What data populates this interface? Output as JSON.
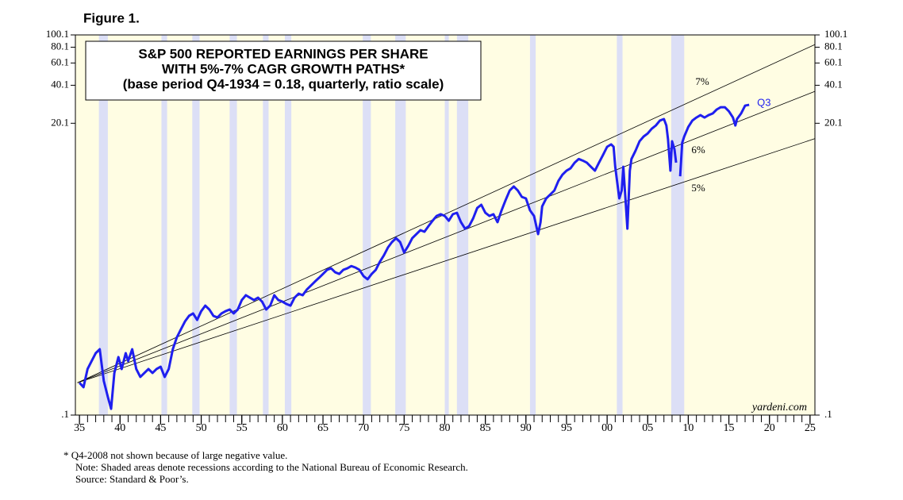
{
  "chart_data": {
    "type": "line",
    "figure_label": "Figure 1.",
    "title_lines": [
      "S&P 500 REPORTED EARNINGS PER SHARE",
      "WITH 5%-7% CAGR GROWTH PATHS*",
      "(base period Q4-1934 = 0.18, quarterly, ratio scale)"
    ],
    "log_scale": true,
    "color": "#1f1fef",
    "background": "#fffde3",
    "recession_color": "#dcdff6",
    "xlim": [
      1934.5,
      2025.6
    ],
    "ylim": [
      0.1,
      100.1
    ],
    "yticks": [
      {
        "value": 0.1,
        "label": ".1"
      },
      20.1,
      40.1,
      60.1,
      80.1,
      100.1
    ],
    "xticks": [
      {
        "value": 1935,
        "label": "35"
      },
      {
        "value": 1940,
        "label": "40"
      },
      {
        "value": 1945,
        "label": "45"
      },
      {
        "value": 1950,
        "label": "50"
      },
      {
        "value": 1955,
        "label": "55"
      },
      {
        "value": 1960,
        "label": "60"
      },
      {
        "value": 1965,
        "label": "65"
      },
      {
        "value": 1970,
        "label": "70"
      },
      {
        "value": 1975,
        "label": "75"
      },
      {
        "value": 1980,
        "label": "80"
      },
      {
        "value": 1985,
        "label": "85"
      },
      {
        "value": 1990,
        "label": "90"
      },
      {
        "value": 1995,
        "label": "95"
      },
      {
        "value": 2000,
        "label": "00"
      },
      {
        "value": 2005,
        "label": "05"
      },
      {
        "value": 2010,
        "label": "10"
      },
      {
        "value": 2015,
        "label": "15"
      },
      {
        "value": 2020,
        "label": "20"
      },
      {
        "value": 2025,
        "label": "25"
      }
    ],
    "xminorticks": [
      1935,
      1936,
      1937,
      1938,
      1939,
      1940,
      1941,
      1942,
      1943,
      1944,
      1945,
      1946,
      1947,
      1948,
      1949,
      1950,
      1951,
      1952,
      1953,
      1954,
      1955,
      1956,
      1957,
      1958,
      1959,
      1960,
      1961,
      1962,
      1963,
      1964,
      1965,
      1966,
      1967,
      1968,
      1969,
      1970,
      1971,
      1972,
      1973,
      1974,
      1975,
      1976,
      1977,
      1978,
      1979,
      1980,
      1981,
      1982,
      1983,
      1984,
      1985,
      1986,
      1987,
      1988,
      1989,
      1990,
      1991,
      1992,
      1993,
      1994,
      1995,
      1996,
      1997,
      1998,
      1999,
      2000,
      2001,
      2002,
      2003,
      2004,
      2005,
      2006,
      2007,
      2008,
      2009,
      2010,
      2011,
      2012,
      2013,
      2014,
      2015,
      2016,
      2017,
      2018,
      2019,
      2020,
      2021,
      2022,
      2023,
      2024,
      2025
    ],
    "recessions": [
      [
        1937.4,
        1938.5
      ],
      [
        1945.1,
        1945.8
      ],
      [
        1948.9,
        1949.8
      ],
      [
        1953.5,
        1954.4
      ],
      [
        1957.6,
        1958.3
      ],
      [
        1960.3,
        1961.1
      ],
      [
        1969.9,
        1970.9
      ],
      [
        1973.9,
        1975.2
      ],
      [
        1980.0,
        1980.5
      ],
      [
        1981.5,
        1982.9
      ],
      [
        1990.5,
        1991.2
      ],
      [
        2001.2,
        2001.9
      ],
      [
        2007.9,
        2009.5
      ]
    ],
    "growth_paths": [
      {
        "name": "7%",
        "x": [
          1934.75,
          2025.6
        ],
        "values": [
          0.18,
          84
        ]
      },
      {
        "name": "6%",
        "x": [
          1934.75,
          2025.6
        ],
        "values": [
          0.18,
          35.9
        ]
      },
      {
        "name": "5%",
        "x": [
          1934.75,
          2025.6
        ],
        "values": [
          0.18,
          15.2
        ]
      }
    ],
    "x": [
      1935,
      1935.5,
      1936,
      1936.5,
      1937,
      1937.5,
      1938,
      1938.5,
      1938.9,
      1939.3,
      1939.8,
      1940.2,
      1940.7,
      1941,
      1941.5,
      1942,
      1942.5,
      1943,
      1943.5,
      1944,
      1944.5,
      1945,
      1945.5,
      1946,
      1946.5,
      1947,
      1947.5,
      1948,
      1948.5,
      1949,
      1949.5,
      1950,
      1950.5,
      1951,
      1951.5,
      1952,
      1952.5,
      1953,
      1953.5,
      1954,
      1954.5,
      1955,
      1955.5,
      1956,
      1956.5,
      1957,
      1957.5,
      1958,
      1958.5,
      1959,
      1959.5,
      1960,
      1960.5,
      1961,
      1961.5,
      1962,
      1962.5,
      1963,
      1963.5,
      1964,
      1964.5,
      1965,
      1965.5,
      1966,
      1966.5,
      1967,
      1967.5,
      1968,
      1968.5,
      1969,
      1969.5,
      1970,
      1970.5,
      1971,
      1971.5,
      1972,
      1972.5,
      1973,
      1973.5,
      1974,
      1974.5,
      1975,
      1975.5,
      1976,
      1976.5,
      1977,
      1977.5,
      1978,
      1978.5,
      1979,
      1979.5,
      1980,
      1980.5,
      1981,
      1981.5,
      1982,
      1982.5,
      1983,
      1983.5,
      1984,
      1984.5,
      1985,
      1985.5,
      1986,
      1986.5,
      1987,
      1987.5,
      1988,
      1988.5,
      1989,
      1989.5,
      1990,
      1990.5,
      1991,
      1991.5,
      1991.8,
      1992,
      1992.5,
      1993,
      1993.5,
      1994,
      1994.5,
      1995,
      1995.5,
      1996,
      1996.5,
      1997,
      1997.5,
      1998,
      1998.5,
      1999,
      1999.5,
      2000,
      2000.5,
      2000.8,
      2001,
      2001.5,
      2001.8,
      2002,
      2002.5,
      2002.8,
      2003,
      2003.5,
      2004,
      2004.5,
      2005,
      2005.5,
      2006,
      2006.5,
      2007,
      2007.3,
      2007.5,
      2007.8,
      2008,
      2008.3,
      2008.5,
      2008.75,
      2009,
      2009.25,
      2009.5,
      2010,
      2010.5,
      2011,
      2011.5,
      2012,
      2012.5,
      2013,
      2013.5,
      2014,
      2014.5,
      2015,
      2015.5,
      2015.8,
      2016,
      2016.5,
      2017,
      2017.5
    ],
    "values": [
      0.18,
      0.166,
      0.231,
      0.267,
      0.308,
      0.331,
      0.186,
      0.139,
      0.112,
      0.215,
      0.287,
      0.231,
      0.308,
      0.267,
      0.331,
      0.231,
      0.2,
      0.215,
      0.231,
      0.215,
      0.231,
      0.241,
      0.2,
      0.231,
      0.331,
      0.411,
      0.475,
      0.548,
      0.607,
      0.634,
      0.564,
      0.661,
      0.731,
      0.681,
      0.607,
      0.589,
      0.634,
      0.661,
      0.681,
      0.634,
      0.681,
      0.809,
      0.883,
      0.845,
      0.809,
      0.845,
      0.786,
      0.681,
      0.731,
      0.883,
      0.809,
      0.786,
      0.753,
      0.731,
      0.845,
      0.908,
      0.883,
      0.977,
      1.05,
      1.13,
      1.21,
      1.3,
      1.4,
      1.44,
      1.34,
      1.3,
      1.4,
      1.44,
      1.5,
      1.46,
      1.4,
      1.25,
      1.18,
      1.3,
      1.4,
      1.62,
      1.82,
      2.1,
      2.32,
      2.49,
      2.32,
      1.92,
      2.16,
      2.49,
      2.68,
      2.88,
      2.8,
      3.1,
      3.42,
      3.73,
      3.85,
      3.73,
      3.42,
      3.85,
      3.95,
      3.33,
      2.96,
      3.1,
      3.57,
      4.31,
      4.57,
      3.95,
      3.73,
      3.85,
      3.33,
      4.13,
      4.98,
      5.92,
      6.37,
      5.92,
      5.27,
      5.13,
      4.13,
      3.73,
      2.68,
      3.33,
      4.44,
      5.13,
      5.51,
      5.92,
      7.05,
      7.9,
      8.49,
      8.87,
      9.82,
      10.5,
      10.2,
      9.82,
      9.12,
      8.49,
      9.82,
      11.3,
      13.1,
      13.7,
      13.1,
      9.12,
      5.13,
      5.92,
      9.12,
      2.96,
      8.49,
      10.5,
      12.2,
      14.5,
      15.8,
      16.7,
      18.2,
      19.3,
      21.1,
      21.7,
      19.3,
      15.1,
      8.49,
      14.5,
      12.5,
      9.82,
      null,
      7.67,
      14.1,
      15.8,
      18.8,
      21.1,
      22.3,
      23.3,
      22.3,
      23.3,
      24.0,
      25.8,
      26.9,
      26.9,
      25.0,
      22.3,
      19.3,
      21.7,
      24.0,
      27.7,
      28.1
    ],
    "end_label": "Q3",
    "source_mark": "yardeni.com",
    "footnotes": [
      "*   Q4-2008 not shown because of large negative value.",
      "Note: Shaded areas denote recessions according to the National Bureau of Economic Research.",
      "Source: Standard & Poor’s."
    ]
  }
}
